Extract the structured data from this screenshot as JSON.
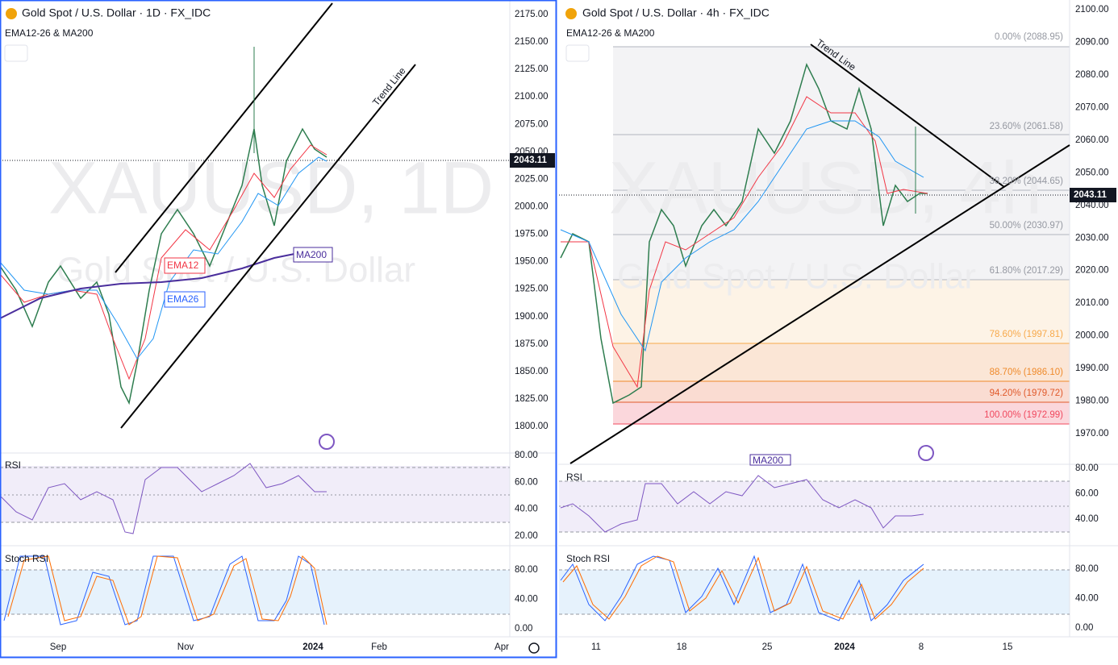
{
  "left": {
    "title": "Gold Spot / U.S. Dollar · 1D · FX_IDC",
    "indicator": "EMA12-26 & MA200",
    "watermark": "XAUUSD, 1D",
    "watermark_sub": "Gold Spot / U.S. Dollar",
    "price_axis": [
      "2175.00",
      "2150.00",
      "2125.00",
      "2100.00",
      "2075.00",
      "2050.00",
      "2025.00",
      "2000.00",
      "1975.00",
      "1950.00",
      "1925.00",
      "1900.00",
      "1875.00",
      "1850.00",
      "1825.00",
      "1800.00"
    ],
    "last_price": "2043.11",
    "ema12": "EMA12",
    "ema26": "EMA26",
    "ma200": "MA200",
    "trend_label": "Trend Line",
    "rsi_label": "RSI",
    "rsi_axis": [
      "80.00",
      "60.00",
      "40.00",
      "20.00"
    ],
    "stoch_label": "Stoch RSI",
    "stoch_axis": [
      "80.00",
      "40.00",
      "0.00"
    ],
    "time_axis": [
      "Sep",
      "Nov",
      "2024",
      "Feb",
      "Apr"
    ]
  },
  "right": {
    "title": "Gold Spot / U.S. Dollar · 4h · FX_IDC",
    "indicator": "EMA12-26 & MA200",
    "watermark": "XAUUSD, 4h",
    "watermark_sub": "Gold Spot / U.S. Dollar",
    "price_axis": [
      "2100.00",
      "2090.00",
      "2080.00",
      "2070.00",
      "2060.00",
      "2050.00",
      "2040.00",
      "2030.00",
      "2020.00",
      "2010.00",
      "2000.00",
      "1990.00",
      "1980.00",
      "1970.00"
    ],
    "last_price": "2043.11",
    "ma200": "MA200",
    "trend_label": "Trend Line",
    "fib_levels": [
      "0.00% (2088.95)",
      "23.60% (2061.58)",
      "38.20% (2044.65)",
      "50.00% (2030.97)",
      "61.80% (2017.29)",
      "78.60% (1997.81)",
      "88.70% (1986.10)",
      "94.20% (1979.72)",
      "100.00% (1972.99)"
    ],
    "rsi_label": "RSI",
    "rsi_axis": [
      "80.00",
      "60.00",
      "40.00"
    ],
    "stoch_label": "Stoch RSI",
    "stoch_axis": [
      "80.00",
      "40.00",
      "0.00"
    ],
    "time_axis": [
      "11",
      "18",
      "25",
      "2024",
      "8",
      "15"
    ]
  }
}
